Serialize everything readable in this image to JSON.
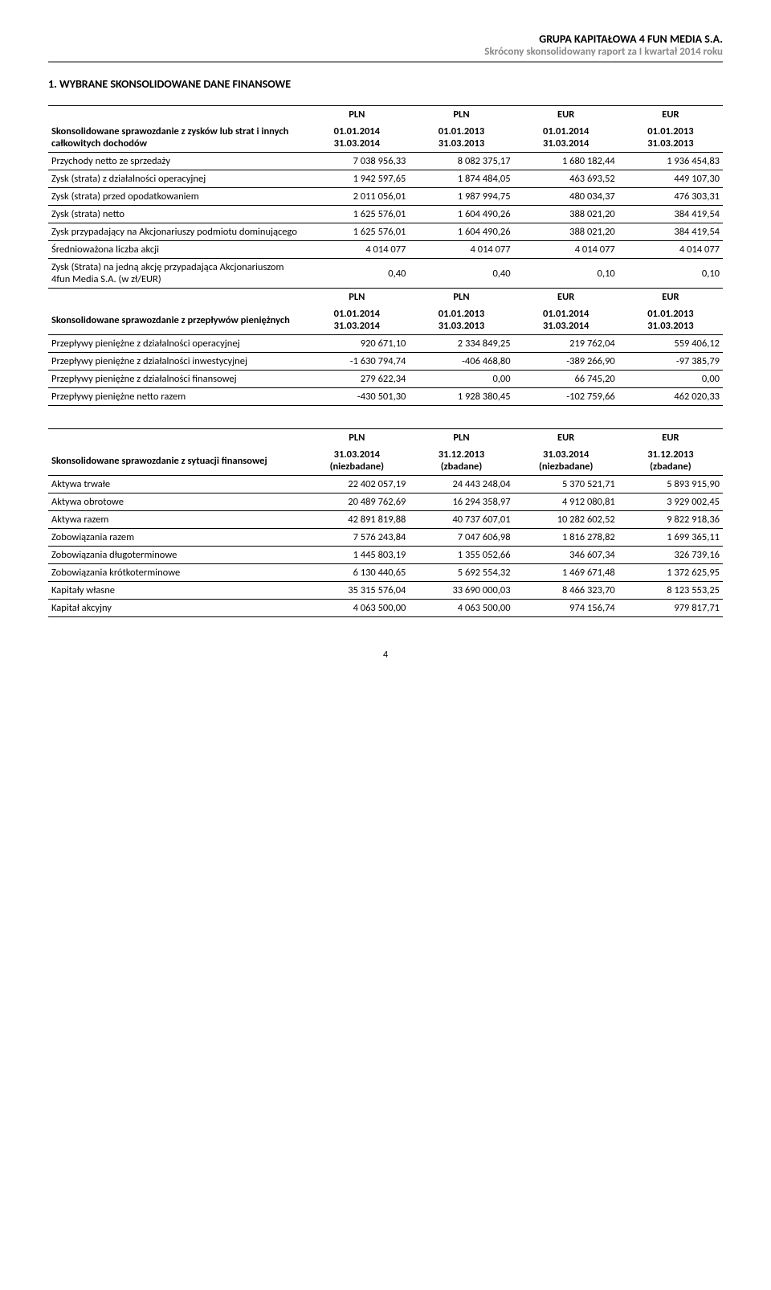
{
  "header": {
    "company": "GRUPA KAPITAŁOWA 4 FUN MEDIA S.A.",
    "subtitle": "Skrócony skonsolidowany raport za I kwartał 2014 roku"
  },
  "section_title": "1.   WYBRANE SKONSOLIDOWANE DANE FINANSOWE",
  "currencies": [
    "PLN",
    "PLN",
    "EUR",
    "EUR"
  ],
  "periods": {
    "p1a": "01.01.2014",
    "p1b": "31.03.2014",
    "p2a": "01.01.2013",
    "p2b": "31.03.2013",
    "p3a": "01.01.2014",
    "p3b": "31.03.2014",
    "p4a": "01.01.2013",
    "p4b": "31.03.2013"
  },
  "table1": {
    "group_label": "Skonsolidowane sprawozdanie z zysków lub strat i innych całkowitych dochodów",
    "rows": [
      {
        "label": "Przychody netto ze sprzedaży",
        "v": [
          "7 038 956,33",
          "8 082 375,17",
          "1 680 182,44",
          "1 936 454,83"
        ]
      },
      {
        "label": "Zysk (strata) z działalności operacyjnej",
        "v": [
          "1 942 597,65",
          "1 874 484,05",
          "463 693,52",
          "449 107,30"
        ]
      },
      {
        "label": "Zysk (strata) przed opodatkowaniem",
        "v": [
          "2 011 056,01",
          "1 987 994,75",
          "480 034,37",
          "476 303,31"
        ]
      },
      {
        "label": "Zysk (strata) netto",
        "v": [
          "1 625 576,01",
          "1 604 490,26",
          "388 021,20",
          "384 419,54"
        ]
      },
      {
        "label": "Zysk przypadający na Akcjonariuszy podmiotu dominującego",
        "v": [
          "1 625 576,01",
          "1 604 490,26",
          "388 021,20",
          "384 419,54"
        ]
      },
      {
        "label": "Średnioważona liczba akcji",
        "v": [
          "4 014 077",
          "4 014 077",
          "4 014 077",
          "4 014 077"
        ]
      },
      {
        "label": "Zysk (Strata) na jedną akcję przypadająca Akcjonariuszom 4fun Media S.A. (w zł/EUR)",
        "v": [
          "0,40",
          "0,40",
          "0,10",
          "0,10"
        ]
      }
    ]
  },
  "table2": {
    "group_label": "Skonsolidowane sprawozdanie z przepływów pieniężnych",
    "rows": [
      {
        "label": "Przepływy pieniężne z działalności operacyjnej",
        "v": [
          "920 671,10",
          "2 334 849,25",
          "219 762,04",
          "559 406,12"
        ]
      },
      {
        "label": "Przepływy pieniężne z działalności inwestycyjnej",
        "v": [
          "-1 630 794,74",
          "-406 468,80",
          "-389 266,90",
          "-97 385,79"
        ]
      },
      {
        "label": "Przepływy pieniężne z działalności finansowej",
        "v": [
          "279 622,34",
          "0,00",
          "66 745,20",
          "0,00"
        ]
      },
      {
        "label": "Przepływy pieniężne netto razem",
        "v": [
          "-430 501,30",
          "1 928 380,45",
          "-102 759,66",
          "462 020,33"
        ]
      }
    ]
  },
  "table3": {
    "dates": {
      "d1a": "31.03.2014",
      "d1b": "(niezbadane)",
      "d2a": "31.12.2013",
      "d2b": "(zbadane)",
      "d3a": "31.03.2014",
      "d3b": "(niezbadane)",
      "d4a": "31.12.2013",
      "d4b": "(zbadane)"
    },
    "group_label": "Skonsolidowane sprawozdanie z sytuacji finansowej",
    "rows": [
      {
        "label": "Aktywa trwałe",
        "v": [
          "22 402 057,19",
          "24 443 248,04",
          "5 370 521,71",
          "5 893 915,90"
        ]
      },
      {
        "label": "Aktywa obrotowe",
        "v": [
          "20 489 762,69",
          "16 294 358,97",
          "4 912 080,81",
          "3 929 002,45"
        ]
      },
      {
        "label": "Aktywa razem",
        "v": [
          "42 891 819,88",
          "40 737 607,01",
          "10 282 602,52",
          "9 822 918,36"
        ]
      },
      {
        "label": "Zobowiązania razem",
        "v": [
          "7 576 243,84",
          "7 047 606,98",
          "1 816 278,82",
          "1 699 365,11"
        ]
      },
      {
        "label": "Zobowiązania długoterminowe",
        "v": [
          "1 445 803,19",
          "1 355 052,66",
          "346 607,34",
          "326 739,16"
        ]
      },
      {
        "label": "Zobowiązania krótkoterminowe",
        "v": [
          "6 130 440,65",
          "5 692 554,32",
          "1 469 671,48",
          "1 372 625,95"
        ]
      },
      {
        "label": "Kapitały własne",
        "v": [
          "35 315 576,04",
          "33 690 000,03",
          "8 466 323,70",
          "8 123 553,25"
        ]
      },
      {
        "label": "Kapitał akcyjny",
        "v": [
          "4 063 500,00",
          "4 063 500,00",
          "974 156,74",
          "979 817,71"
        ]
      }
    ]
  },
  "page_number": "4"
}
